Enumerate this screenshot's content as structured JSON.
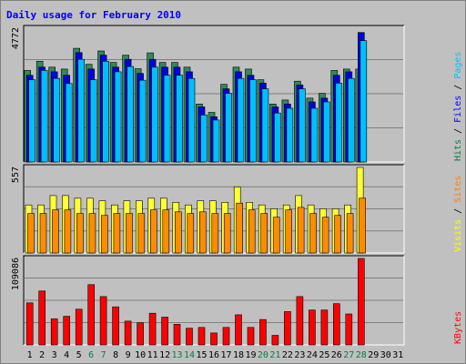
{
  "chart_data": {
    "type": "bar",
    "title": "Daily usage for February 2010",
    "days": [
      "1",
      "2",
      "3",
      "4",
      "5",
      "6",
      "7",
      "8",
      "9",
      "10",
      "11",
      "12",
      "13",
      "14",
      "15",
      "16",
      "17",
      "18",
      "19",
      "20",
      "21",
      "22",
      "23",
      "24",
      "25",
      "26",
      "27",
      "28",
      "29",
      "30",
      "31"
    ],
    "weekend_days": [
      "6",
      "7",
      "13",
      "14",
      "20",
      "21",
      "27",
      "28"
    ],
    "panels": [
      {
        "name": "hits-files-pages",
        "ymax_label": "4772",
        "ymax": 4772,
        "right_label": [
          {
            "text": "Hits",
            "color": "#008040"
          },
          {
            "text": " / ",
            "color": "#000000"
          },
          {
            "text": "Files",
            "color": "#0000ff"
          },
          {
            "text": " / ",
            "color": "#000000"
          },
          {
            "text": "Pages",
            "color": "#00c0ff"
          }
        ],
        "series": [
          {
            "name": "Hits",
            "color": "#2e8b57",
            "values": [
              3265,
              3593,
              3382,
              3316,
              4056,
              3484,
              3960,
              3551,
              3812,
              3328,
              3892,
              3551,
              3551,
              3382,
              2068,
              1768,
              2768,
              3382,
              3316,
              2933,
              2068,
              2210,
              2884,
              2278,
              2450,
              3265,
              3316,
              3316,
              null,
              null,
              null
            ]
          },
          {
            "name": "Files",
            "color": "#0000e0",
            "values": [
              3093,
              3382,
              3217,
              3093,
              3902,
              3317,
              3812,
              3382,
              3663,
              3160,
              3663,
              3382,
              3382,
              3217,
              1963,
              1612,
              2610,
              3217,
              3093,
              2813,
              1963,
              2068,
              2746,
              2143,
              2278,
              3093,
              3217,
              4620,
              null,
              null,
              null
            ]
          },
          {
            "name": "Pages",
            "color": "#00bfff",
            "values": [
              2933,
              3265,
              2980,
              2798,
              3663,
              2933,
              3593,
              3217,
              3404,
              2916,
              3382,
              3093,
              3093,
              2980,
              1677,
              1495,
              2450,
              2980,
              2933,
              2610,
              1747,
              1914,
              2610,
              1914,
              2143,
              2810,
              2980,
              4326,
              null,
              null,
              null
            ]
          }
        ]
      },
      {
        "name": "visits-sites",
        "ymax_label": "557",
        "ymax": 557,
        "right_label": [
          {
            "text": "Visits",
            "color": "#ffff00"
          },
          {
            "text": " / ",
            "color": "#000000"
          },
          {
            "text": "Sites",
            "color": "#ff8000"
          }
        ],
        "series": [
          {
            "name": "Visits",
            "color": "#ffff33",
            "values": [
              313,
              313,
              374,
              374,
              357,
              357,
              340,
              313,
              340,
              340,
              357,
              357,
              330,
              313,
              340,
              340,
              330,
              430,
              330,
              313,
              288,
              313,
              374,
              313,
              288,
              288,
              313,
              557,
              null,
              null,
              null
            ]
          },
          {
            "name": "Sites",
            "color": "#ff8c00",
            "values": [
              257,
              257,
              280,
              280,
              257,
              257,
              245,
              257,
              257,
              257,
              280,
              280,
              268,
              257,
              268,
              257,
              257,
              325,
              280,
              257,
              233,
              280,
              297,
              257,
              233,
              245,
              257,
              357,
              null,
              null,
              null
            ]
          }
        ]
      },
      {
        "name": "kbytes",
        "ymax_label": "109086",
        "ymax": 109086,
        "right_label": [
          {
            "text": "KBytes",
            "color": "#ff0000"
          }
        ],
        "series": [
          {
            "name": "KBytes",
            "color": "#ff0000",
            "values": [
              53000,
              68000,
              33000,
              36000,
              45000,
              76000,
              61000,
              48000,
              30000,
              28000,
              40000,
              35000,
              26000,
              21000,
              22000,
              15000,
              22000,
              38000,
              22000,
              32000,
              12000,
              42000,
              61000,
              44000,
              44000,
              52000,
              39000,
              109086,
              null,
              null,
              null
            ]
          }
        ]
      }
    ]
  }
}
